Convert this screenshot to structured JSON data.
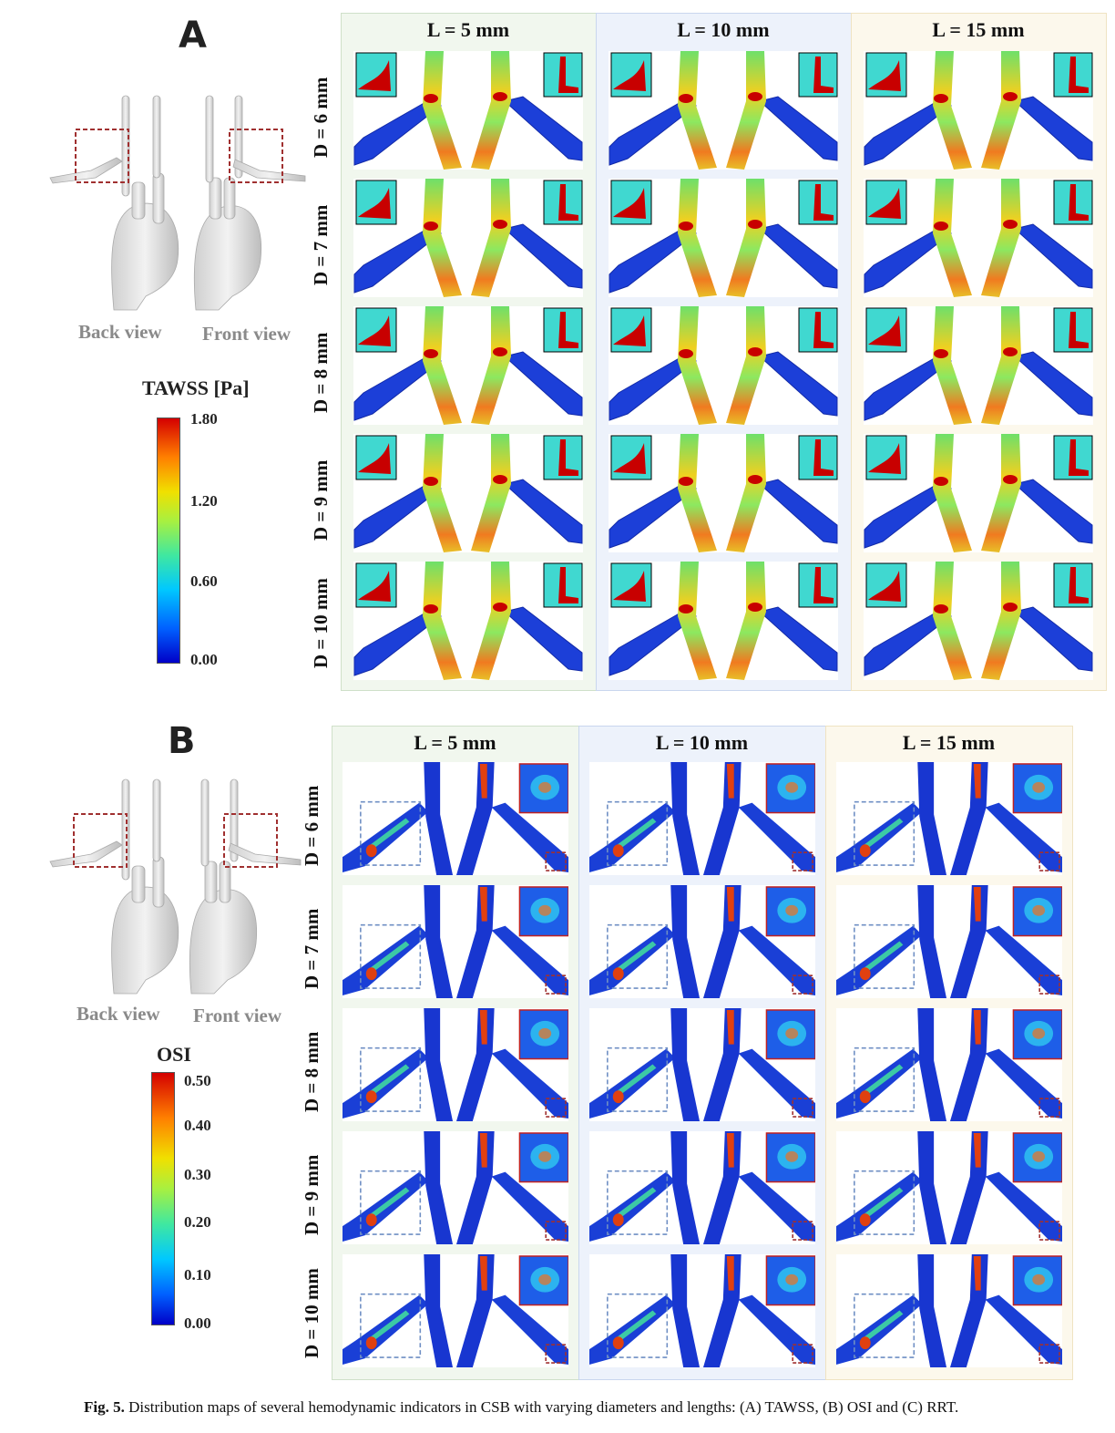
{
  "panels": {
    "A": {
      "letter": "A",
      "back_view": "Back view",
      "front_view": "Front view",
      "colorbar_title": "TAWSS [Pa]",
      "ticks": [
        "1.80",
        "1.20",
        "0.60",
        "0.00"
      ],
      "columns": [
        "L = 5 mm",
        "L = 10 mm",
        "L = 15 mm"
      ],
      "rows": [
        "D = 6 mm",
        "D = 7 mm",
        "D = 8 mm",
        "D = 9 mm",
        "D = 10 mm"
      ]
    },
    "B": {
      "letter": "B",
      "back_view": "Back view",
      "front_view": "Front view",
      "colorbar_title": "OSI",
      "ticks": [
        "0.50",
        "0.40",
        "0.30",
        "0.20",
        "0.10",
        "0.00"
      ],
      "columns": [
        "L = 5 mm",
        "L = 10 mm",
        "L = 15 mm"
      ],
      "rows": [
        "D = 6 mm",
        "D = 7 mm",
        "D = 8 mm",
        "D = 9 mm",
        "D = 10 mm"
      ]
    }
  },
  "caption": {
    "label": "Fig. 5.",
    "text": "Distribution maps of several hemodynamic indicators in CSB with varying diameters and lengths: (A) TAWSS, (B) OSI and (C) RRT."
  },
  "colors": {
    "col_bg": [
      "#f1f7ee",
      "#edf2fb",
      "#fcf8ec"
    ],
    "col_border": [
      "#cfe0c9",
      "#c9d6ee",
      "#efe3c2"
    ],
    "vessel_blue": "#1a3fd6",
    "vessel_wall": "#2a4fe0",
    "dashed_red": "#a03030",
    "dashed_blue": "#6f8fc4"
  }
}
